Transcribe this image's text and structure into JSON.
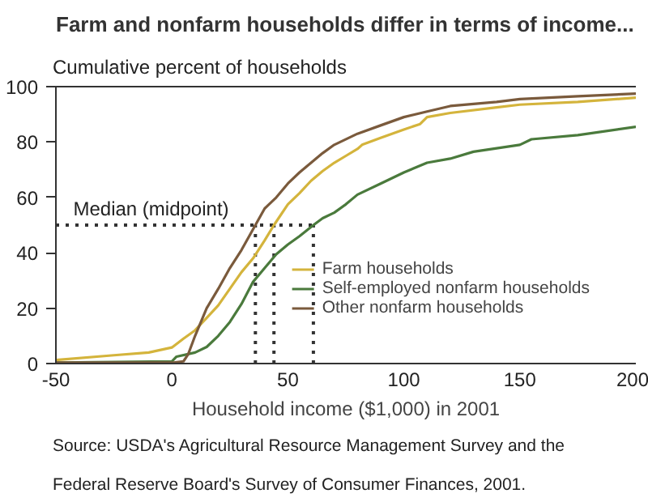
{
  "chart_data": {
    "type": "line",
    "title": "Farm and nonfarm households differ in terms of income...",
    "ylabel": "Cumulative percent of households",
    "xlabel": "Household income ($1,000) in 2001",
    "annotations": [
      "Source:  USDA's Agricultural Resource Management Survey and the Federal Reserve Board's Survey of Consumer Finances, 2001."
    ],
    "xlim": [
      -50,
      200
    ],
    "ylim": [
      0,
      100
    ],
    "xticks": [
      -50,
      0,
      50,
      100,
      150,
      200
    ],
    "yticks": [
      0,
      20,
      40,
      60,
      80,
      100
    ],
    "grid": false,
    "legend": "bottom right",
    "line_style": "solid",
    "ref_lines": [
      {
        "axis": "y",
        "value": 50,
        "label": "Median (midpoint)",
        "color": "#333333",
        "line_style": "dotted"
      },
      {
        "axis": "x",
        "value": 36,
        "color": "#333333",
        "line_style": "dotted"
      },
      {
        "axis": "x",
        "value": 44,
        "color": "#333333",
        "line_style": "dotted"
      },
      {
        "axis": "x",
        "value": 61,
        "color": "#333333",
        "line_style": "dotted"
      }
    ],
    "series": [
      {
        "name": "Farm households",
        "color": "#d4b43c",
        "x": [
          -50,
          -25,
          -10,
          0,
          5,
          10,
          15,
          20,
          25,
          30,
          35,
          40,
          44,
          50,
          55,
          60,
          65,
          70,
          75,
          80,
          82,
          90,
          100,
          107,
          110,
          120,
          140,
          150,
          175,
          200
        ],
        "values": [
          1.3,
          3,
          4,
          5.8,
          9,
          12,
          16.5,
          21,
          27,
          33,
          38,
          44.5,
          50,
          57.5,
          61.5,
          66,
          69.5,
          72.5,
          75,
          77.5,
          79,
          81.5,
          84.5,
          86.5,
          89,
          90.5,
          92.5,
          93.5,
          94.5,
          96
        ]
      },
      {
        "name": "Self-employed nonfarm households",
        "color": "#4a7a3c",
        "x": [
          -50,
          0,
          2,
          10,
          15,
          20,
          25,
          30,
          35,
          40,
          45,
          50,
          55,
          61,
          65,
          70,
          75,
          80,
          90,
          100,
          110,
          120,
          130,
          150,
          155,
          175,
          200
        ],
        "values": [
          0.3,
          0.8,
          2.5,
          4,
          6,
          10,
          15,
          21.5,
          29.5,
          34.5,
          39.5,
          43,
          46,
          50,
          52.5,
          54.5,
          57.5,
          61,
          65,
          69,
          72.5,
          74,
          76.5,
          79,
          81,
          82.5,
          85.5
        ]
      },
      {
        "name": "Other nonfarm households",
        "color": "#7a5a3c",
        "x": [
          -50,
          0,
          5,
          7,
          10,
          15,
          20,
          25,
          30,
          36,
          40,
          45,
          50,
          55,
          60,
          65,
          70,
          80,
          90,
          100,
          110,
          120,
          140,
          150,
          175,
          200
        ],
        "values": [
          0.3,
          0.3,
          0.8,
          3.3,
          10,
          20,
          27,
          34.5,
          41,
          50,
          56,
          60,
          65,
          69,
          72.5,
          76,
          79,
          83,
          86,
          89,
          91,
          93,
          94.5,
          95.5,
          96.5,
          97.5
        ]
      }
    ]
  }
}
